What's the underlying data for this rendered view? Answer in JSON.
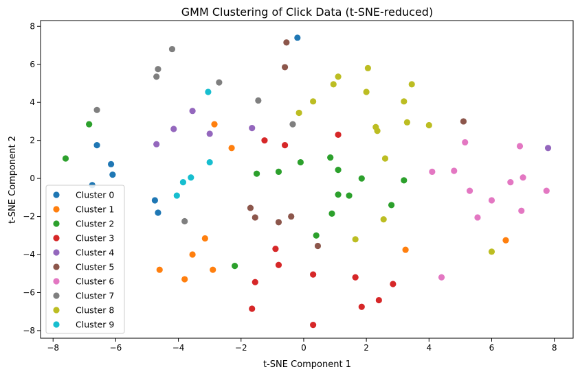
{
  "chart_data": {
    "type": "scatter",
    "title": "GMM Clustering of Click Data (t-SNE-reduced)",
    "xlabel": "t-SNE Component 1",
    "ylabel": "t-SNE Component 2",
    "xlim": [
      -8.4,
      8.6
    ],
    "ylim": [
      -8.4,
      8.3
    ],
    "xticks": [
      -8,
      -6,
      -4,
      -2,
      0,
      2,
      4,
      6,
      8
    ],
    "yticks": [
      -8,
      -6,
      -4,
      -2,
      0,
      2,
      4,
      6,
      8
    ],
    "grid": false,
    "legend_position": "lower-left",
    "series": [
      {
        "name": "Cluster 0",
        "color": "#1f77b4",
        "points": [
          [
            -0.2,
            7.4
          ],
          [
            -6.6,
            1.75
          ],
          [
            -6.15,
            0.75
          ],
          [
            -6.1,
            0.2
          ],
          [
            -6.75,
            -0.35
          ],
          [
            -4.75,
            -1.15
          ],
          [
            -4.65,
            -1.8
          ]
        ]
      },
      {
        "name": "Cluster 1",
        "color": "#ff7f0e",
        "points": [
          [
            -2.85,
            2.85
          ],
          [
            -2.3,
            1.6
          ],
          [
            -3.15,
            -3.15
          ],
          [
            -3.55,
            -4.0
          ],
          [
            -4.6,
            -4.8
          ],
          [
            -3.8,
            -5.3
          ],
          [
            -2.9,
            -4.8
          ],
          [
            3.25,
            -3.75
          ],
          [
            6.45,
            -3.25
          ]
        ]
      },
      {
        "name": "Cluster 2",
        "color": "#2ca02c",
        "points": [
          [
            -7.6,
            1.05
          ],
          [
            -6.85,
            2.85
          ],
          [
            -1.5,
            0.25
          ],
          [
            -0.8,
            0.35
          ],
          [
            -0.1,
            0.85
          ],
          [
            0.85,
            1.1
          ],
          [
            1.1,
            0.45
          ],
          [
            1.1,
            -0.85
          ],
          [
            1.45,
            -0.9
          ],
          [
            1.85,
            0.0
          ],
          [
            2.8,
            -1.4
          ],
          [
            0.9,
            -1.85
          ],
          [
            0.4,
            -3.0
          ],
          [
            3.2,
            -0.1
          ],
          [
            -2.2,
            -4.6
          ]
        ]
      },
      {
        "name": "Cluster 3",
        "color": "#d62728",
        "points": [
          [
            -1.25,
            2.0
          ],
          [
            -0.6,
            1.75
          ],
          [
            1.1,
            2.3
          ],
          [
            -0.9,
            -3.7
          ],
          [
            -0.8,
            -4.55
          ],
          [
            0.3,
            -5.05
          ],
          [
            -1.55,
            -5.45
          ],
          [
            1.65,
            -5.2
          ],
          [
            2.85,
            -5.55
          ],
          [
            2.4,
            -6.4
          ],
          [
            1.85,
            -6.75
          ],
          [
            -1.65,
            -6.85
          ],
          [
            0.3,
            -7.7
          ]
        ]
      },
      {
        "name": "Cluster 4",
        "color": "#9467bd",
        "points": [
          [
            -3.55,
            3.55
          ],
          [
            -4.15,
            2.6
          ],
          [
            -3.0,
            2.35
          ],
          [
            -1.65,
            2.65
          ],
          [
            -4.7,
            1.8
          ],
          [
            7.8,
            1.6
          ]
        ]
      },
      {
        "name": "Cluster 5",
        "color": "#8c564b",
        "points": [
          [
            -0.55,
            7.15
          ],
          [
            -0.6,
            5.85
          ],
          [
            5.1,
            3.0
          ],
          [
            -1.7,
            -1.55
          ],
          [
            -1.55,
            -2.05
          ],
          [
            -0.8,
            -2.3
          ],
          [
            -0.4,
            -2.0
          ],
          [
            0.45,
            -3.55
          ]
        ]
      },
      {
        "name": "Cluster 6",
        "color": "#e377c2",
        "points": [
          [
            5.15,
            1.9
          ],
          [
            6.9,
            1.7
          ],
          [
            4.1,
            0.35
          ],
          [
            4.8,
            0.4
          ],
          [
            7.0,
            0.05
          ],
          [
            6.6,
            -0.2
          ],
          [
            5.3,
            -0.65
          ],
          [
            7.75,
            -0.65
          ],
          [
            6.0,
            -1.15
          ],
          [
            6.95,
            -1.7
          ],
          [
            5.55,
            -2.05
          ],
          [
            4.4,
            -5.2
          ]
        ]
      },
      {
        "name": "Cluster 7",
        "color": "#7f7f7f",
        "points": [
          [
            -4.2,
            6.8
          ],
          [
            -4.65,
            5.75
          ],
          [
            -4.7,
            5.35
          ],
          [
            -2.7,
            5.05
          ],
          [
            -1.45,
            4.1
          ],
          [
            -0.35,
            2.85
          ],
          [
            -6.6,
            3.6
          ],
          [
            -3.8,
            -2.25
          ]
        ]
      },
      {
        "name": "Cluster 8",
        "color": "#bcbd22",
        "points": [
          [
            2.05,
            5.8
          ],
          [
            1.1,
            5.35
          ],
          [
            0.95,
            4.95
          ],
          [
            3.45,
            4.95
          ],
          [
            2.0,
            4.55
          ],
          [
            0.3,
            4.05
          ],
          [
            3.2,
            4.05
          ],
          [
            -0.15,
            3.45
          ],
          [
            3.3,
            2.95
          ],
          [
            2.3,
            2.7
          ],
          [
            2.35,
            2.5
          ],
          [
            4.0,
            2.8
          ],
          [
            2.6,
            1.05
          ],
          [
            2.55,
            -2.15
          ],
          [
            1.65,
            -3.2
          ],
          [
            6.0,
            -3.85
          ]
        ]
      },
      {
        "name": "Cluster 9",
        "color": "#17becf",
        "points": [
          [
            -3.05,
            4.55
          ],
          [
            -3.0,
            0.85
          ],
          [
            -3.6,
            0.05
          ],
          [
            -3.85,
            -0.2
          ],
          [
            -4.05,
            -0.9
          ]
        ]
      }
    ]
  }
}
